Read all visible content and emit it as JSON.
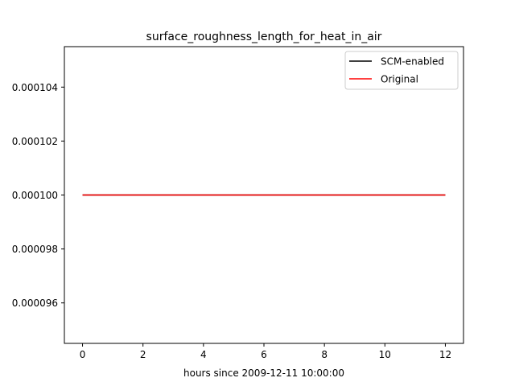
{
  "chart_data": {
    "type": "line",
    "title": "surface_roughness_length_for_heat_in_air",
    "xlabel": "hours since 2009-12-11 10:00:00",
    "ylabel": "",
    "xlim": [
      -0.6,
      12.6
    ],
    "ylim": [
      9.45e-05,
      0.0001055
    ],
    "xticks": [
      0,
      2,
      4,
      6,
      8,
      10,
      12
    ],
    "yticks": [
      9.6e-05,
      9.8e-05,
      0.0001,
      0.000102,
      0.000104
    ],
    "ytick_labels": [
      "0.000096",
      "0.000098",
      "0.000100",
      "0.000102",
      "0.000104"
    ],
    "grid": false,
    "legend_position": "top-right",
    "series": [
      {
        "name": "SCM-enabled",
        "color": "#000000",
        "x": [
          0,
          12
        ],
        "y": [
          0.0001,
          0.0001
        ]
      },
      {
        "name": "Original",
        "color": "#ff0000",
        "x": [
          0,
          12
        ],
        "y": [
          0.0001,
          0.0001
        ]
      }
    ]
  }
}
